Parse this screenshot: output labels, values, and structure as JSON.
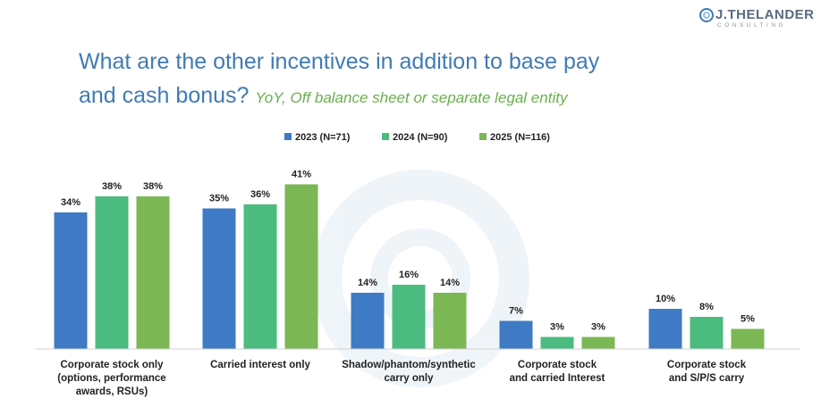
{
  "brand": {
    "name": "J.THELANDER",
    "sub": "CONSULTING",
    "colors": {
      "mark": "#3f7bb5"
    }
  },
  "title": {
    "main": "What are the other incentives in addition to base pay",
    "line2": "and cash bonus?",
    "subtitle": "YoY, Off balance sheet or separate legal entity"
  },
  "chart_data": {
    "type": "bar",
    "title": "What are the other incentives in addition to base pay and cash bonus?",
    "subtitle": "YoY, Off balance sheet or separate legal entity",
    "categories": [
      [
        "Corporate stock only",
        "(options, performance",
        "awards, RSUs)"
      ],
      [
        "Carried interest only"
      ],
      [
        "Shadow/phantom/synthetic",
        "carry only"
      ],
      [
        "Corporate stock",
        "and carried Interest"
      ],
      [
        "Corporate stock",
        "and S/P/S carry"
      ]
    ],
    "series": [
      {
        "name": "2023 (N=71)",
        "color": "#3f7bc4",
        "values": [
          34,
          35,
          14,
          7,
          10
        ]
      },
      {
        "name": "2024 (N=90)",
        "color": "#4cbb7f",
        "values": [
          38,
          36,
          16,
          3,
          8
        ]
      },
      {
        "name": "2025 (N=116)",
        "color": "#7cb755",
        "values": [
          38,
          41,
          14,
          3,
          5
        ]
      }
    ],
    "value_suffix": "%",
    "ylim": [
      0,
      45
    ],
    "grid": false,
    "legend": "top-center"
  }
}
